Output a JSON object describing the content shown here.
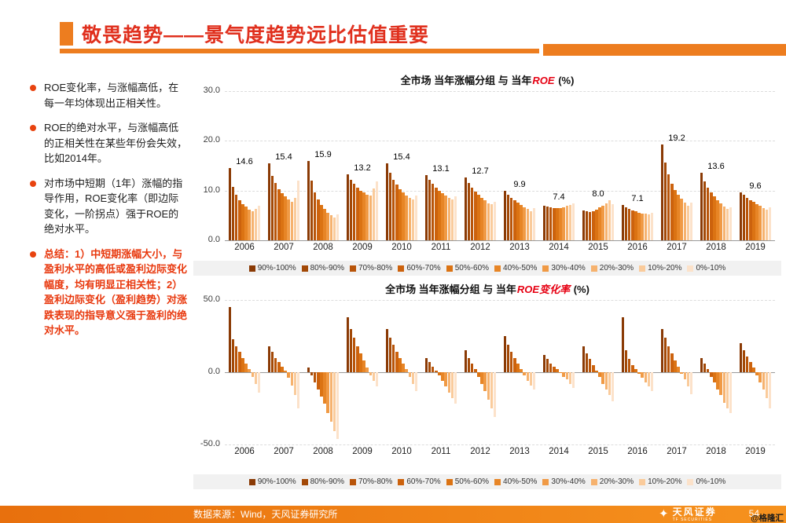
{
  "header": {
    "title": "敬畏趋势——景气度趋势远比估值重要",
    "accent_color": "#ED7D1F",
    "title_color": "#E0301E"
  },
  "sidebar": {
    "bullets": [
      {
        "text": "ROE变化率，与涨幅高低，在每一年均体现出正相关性。",
        "highlight": false
      },
      {
        "text": "ROE的绝对水平，与涨幅高低的正相关性在某些年份会失效，比如2014年。",
        "highlight": false
      },
      {
        "text": "对市场中短期（1年）涨幅的指导作用，ROE变化率（即边际变化，一阶拐点）强于ROE的绝对水平。",
        "highlight": false
      },
      {
        "text": "总结：1）中短期涨幅大小，与盈利水平的高低或盈利边际变化幅度，均有明显正相关性；2）盈利边际变化（盈利趋势）对涨跌表现的指导意义强于盈利的绝对水平。",
        "highlight": true
      }
    ]
  },
  "legend": {
    "labels": [
      "90%-100%",
      "80%-90%",
      "70%-80%",
      "60%-70%",
      "50%-60%",
      "40%-50%",
      "30%-40%",
      "20%-30%",
      "10%-20%",
      "0%-10%"
    ],
    "colors": [
      "#8A3A05",
      "#A24806",
      "#B85409",
      "#CC620D",
      "#DB7313",
      "#E78526",
      "#F09A45",
      "#F6B26E",
      "#FACB9B",
      "#FCE2CA"
    ]
  },
  "chart_data": [
    {
      "type": "bar",
      "title": {
        "prefix": "全市场 当年涨幅分组 与 当年",
        "highlight": "ROE",
        "suffix": " (%)"
      },
      "ylim": [
        0,
        30
      ],
      "yticks": [
        "30.0",
        "20.0",
        "10.0",
        "0.0"
      ],
      "categories": [
        "2006",
        "2007",
        "2008",
        "2009",
        "2010",
        "2011",
        "2012",
        "2013",
        "2014",
        "2015",
        "2016",
        "2017",
        "2018",
        "2019"
      ],
      "series_labels": [
        "90%-100%",
        "80%-90%",
        "70%-80%",
        "60%-70%",
        "50%-60%",
        "40%-50%",
        "30%-40%",
        "20%-30%",
        "10%-20%",
        "0%-10%"
      ],
      "group_value_labels": [
        "14.6",
        "15.4",
        "15.9",
        "13.2",
        "15.4",
        "13.1",
        "12.7",
        "9.9",
        "7.4",
        "8.0",
        "7.1",
        "19.2",
        "13.6",
        "9.6"
      ],
      "values": [
        [
          14.6,
          10.8,
          9.2,
          8.1,
          7.3,
          6.8,
          6.2,
          5.8,
          6.3,
          7.0
        ],
        [
          15.4,
          13.0,
          11.6,
          10.3,
          9.4,
          8.8,
          8.2,
          7.8,
          8.6,
          12.0
        ],
        [
          15.9,
          12.0,
          9.6,
          8.2,
          7.1,
          6.3,
          5.6,
          5.0,
          4.6,
          5.2
        ],
        [
          13.2,
          12.1,
          11.3,
          10.6,
          10.0,
          9.6,
          9.2,
          9.0,
          10.4,
          11.8
        ],
        [
          15.4,
          13.6,
          12.2,
          11.2,
          10.3,
          9.6,
          9.0,
          8.5,
          8.2,
          9.0
        ],
        [
          13.1,
          12.1,
          11.3,
          10.6,
          10.0,
          9.5,
          9.0,
          8.6,
          8.2,
          8.8
        ],
        [
          12.7,
          11.5,
          10.6,
          9.8,
          9.2,
          8.6,
          8.0,
          7.5,
          7.2,
          7.8
        ],
        [
          9.9,
          9.2,
          8.6,
          8.1,
          7.6,
          7.1,
          6.7,
          6.3,
          5.9,
          6.4
        ],
        [
          7.0,
          6.8,
          6.6,
          6.5,
          6.4,
          6.5,
          6.7,
          6.9,
          7.1,
          7.4
        ],
        [
          6.0,
          5.8,
          5.7,
          5.9,
          6.2,
          6.6,
          7.0,
          7.4,
          8.0,
          7.2
        ],
        [
          7.1,
          6.7,
          6.3,
          6.0,
          5.8,
          5.6,
          5.4,
          5.3,
          5.2,
          5.6
        ],
        [
          19.2,
          15.6,
          13.2,
          11.4,
          10.1,
          9.1,
          8.3,
          7.6,
          7.0,
          7.6
        ],
        [
          13.6,
          11.9,
          10.6,
          9.6,
          8.8,
          8.1,
          7.4,
          6.8,
          6.3,
          6.7
        ],
        [
          9.6,
          9.1,
          8.6,
          8.1,
          7.7,
          7.3,
          6.9,
          6.5,
          6.1,
          6.6
        ]
      ]
    },
    {
      "type": "bar",
      "title": {
        "prefix": "全市场 当年涨幅分组 与 当年",
        "highlight": "ROE变化率",
        "suffix": " (%)"
      },
      "ylim": [
        -50,
        50
      ],
      "yticks": [
        "50.0",
        "0.0",
        "-50.0"
      ],
      "categories": [
        "2006",
        "2007",
        "2008",
        "2009",
        "2010",
        "2011",
        "2012",
        "2013",
        "2014",
        "2015",
        "2016",
        "2017",
        "2018",
        "2019"
      ],
      "series_labels": [
        "90%-100%",
        "80%-90%",
        "70%-80%",
        "60%-70%",
        "50%-60%",
        "40%-50%",
        "30%-40%",
        "20%-30%",
        "10%-20%",
        "0%-10%"
      ],
      "group_value_labels": null,
      "values": [
        [
          45,
          23,
          18,
          14,
          10,
          6,
          2,
          -3,
          -8,
          -14
        ],
        [
          18,
          14,
          10,
          7,
          4,
          1,
          -4,
          -9,
          -16,
          -25
        ],
        [
          3,
          -2,
          -7,
          -12,
          -17,
          -22,
          -28,
          -34,
          -41,
          -46
        ],
        [
          38,
          30,
          24,
          18,
          13,
          8,
          3,
          -2,
          -6,
          -10
        ],
        [
          30,
          24,
          19,
          14,
          10,
          6,
          2,
          -3,
          -8,
          -13
        ],
        [
          10,
          7,
          4,
          1,
          -2,
          -6,
          -10,
          -14,
          -18,
          -22
        ],
        [
          15,
          10,
          6,
          2,
          -3,
          -8,
          -13,
          -19,
          -25,
          -31
        ],
        [
          25,
          19,
          14,
          10,
          6,
          2,
          -2,
          -6,
          -9,
          -12
        ],
        [
          12,
          9,
          6,
          4,
          2,
          0,
          -3,
          -5,
          -8,
          -11
        ],
        [
          18,
          13,
          9,
          5,
          1,
          -3,
          -8,
          -12,
          -16,
          -20
        ],
        [
          38,
          15,
          9,
          5,
          2,
          -1,
          -4,
          -7,
          -10,
          -13
        ],
        [
          30,
          24,
          18,
          13,
          8,
          4,
          -1,
          -5,
          -10,
          -15
        ],
        [
          10,
          6,
          2,
          -3,
          -7,
          -12,
          -16,
          -21,
          -25,
          -28
        ],
        [
          20,
          15,
          11,
          7,
          3,
          -2,
          -7,
          -12,
          -18,
          -25
        ]
      ]
    }
  ],
  "footer": {
    "source": "数据来源：Wind，天风证券研究所",
    "logo_text": "天风证券",
    "logo_subtext": "TF SECURITIES",
    "page_number": "54",
    "watermark": "@格隆汇"
  }
}
